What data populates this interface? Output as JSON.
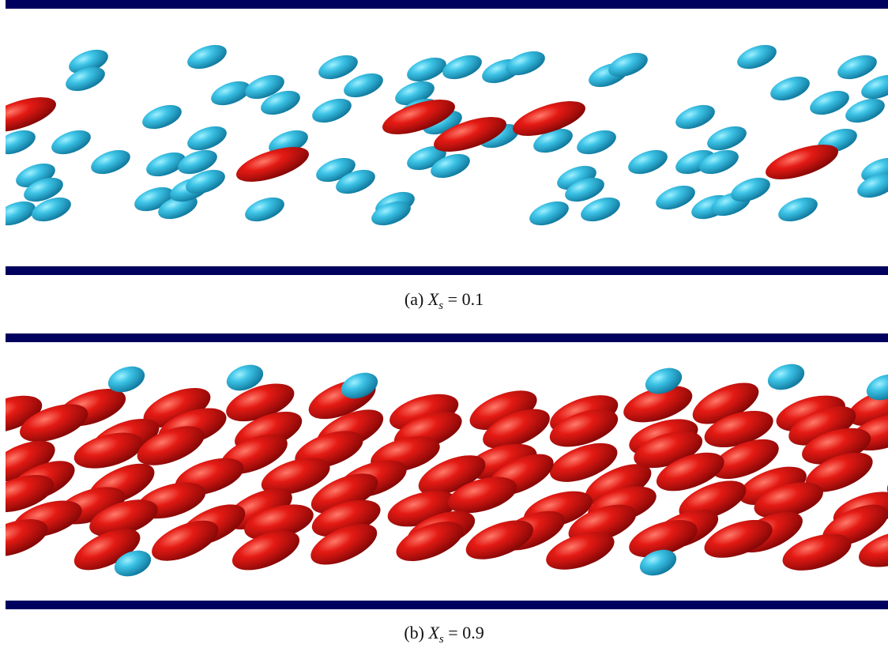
{
  "panels": [
    {
      "caption": {
        "label": "(a)",
        "symbol": "X",
        "subscript": "s",
        "relation": "=",
        "value": 0.1
      }
    },
    {
      "caption": {
        "label": "(b)",
        "symbol": "X",
        "subscript": "s",
        "relation": "=",
        "value": 0.9
      }
    }
  ]
}
